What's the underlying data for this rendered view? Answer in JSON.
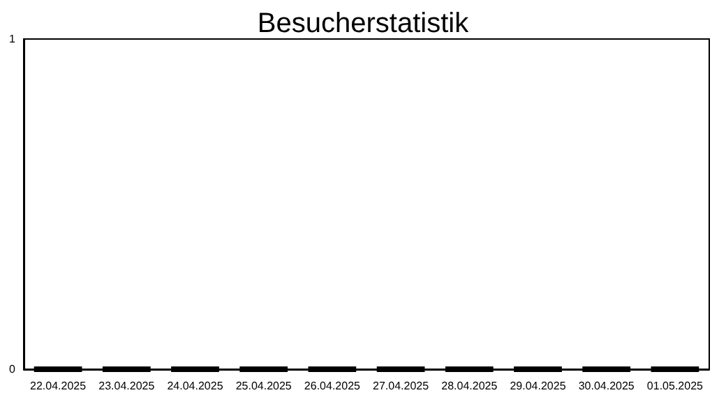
{
  "chart_data": {
    "type": "bar",
    "title": "Besucherstatistik",
    "categories": [
      "22.04.2025",
      "23.04.2025",
      "24.04.2025",
      "25.04.2025",
      "26.04.2025",
      "27.04.2025",
      "28.04.2025",
      "29.04.2025",
      "30.04.2025",
      "01.05.2025"
    ],
    "values": [
      0,
      0,
      0,
      0,
      0,
      0,
      0,
      0,
      0,
      0
    ],
    "color": "#000000",
    "ylim": [
      0,
      1
    ],
    "yticks": [
      0,
      1
    ],
    "grid": false
  }
}
